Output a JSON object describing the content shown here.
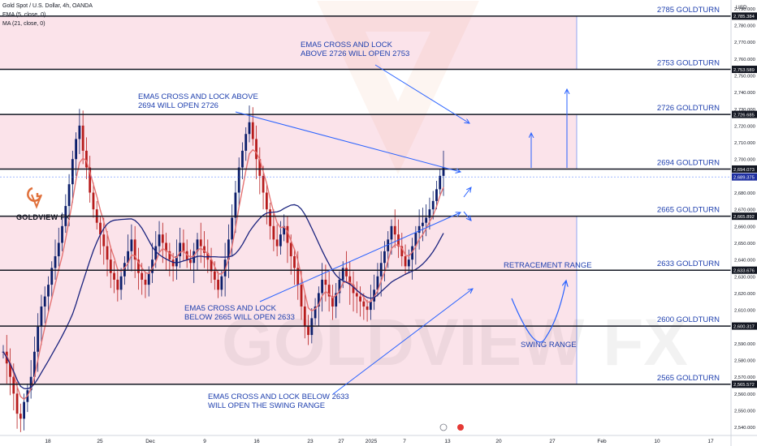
{
  "header": {
    "symbol_line": "Gold Spot / U.S. Dollar, 4h, OANDA",
    "ema_line": "EMA (5, close, 0)",
    "ma_line": "MA (21, close, 0)"
  },
  "watermark": {
    "text": "GOLDVIEW FX"
  },
  "logo": {
    "brand": "GOLDVIEW",
    "suffix": "FX"
  },
  "colors": {
    "zone_pink": "#fbe3ea",
    "level_line": "#131722",
    "annotation_blue": "#2962ff",
    "label_blue": "#1e3fae",
    "candle_up": "#0b1e6b",
    "candle_down": "#b71c1c",
    "ema_color": "#e57373",
    "ma_color": "#1a237e",
    "price_tag": "#1e2fa0"
  },
  "chart_data": {
    "type": "candlestick",
    "title": "Gold Spot / U.S. Dollar, 4h, OANDA",
    "indicators": [
      "EMA (5, close, 0)",
      "MA (21, close, 0)"
    ],
    "y_axis": {
      "unit": "USD",
      "range": [
        2535,
        2795
      ],
      "ticks": [
        2540,
        2550,
        2560,
        2570,
        2580,
        2590,
        2600,
        2610,
        2620,
        2630,
        2640,
        2650,
        2660,
        2670,
        2680,
        2690,
        2700,
        2710,
        2720,
        2730,
        2740,
        2750,
        2760,
        2770,
        2780,
        2790
      ],
      "tick_labels": [
        "2,540.000",
        "2,550.000",
        "2,560.000",
        "2,570.000",
        "2,580.000",
        "2,590.000",
        "2,600.000",
        "2,610.000",
        "2,620.000",
        "2,630.000",
        "2,640.000",
        "2,650.000",
        "2,660.000",
        "2,670.000",
        "2,680.000",
        "2,690.000",
        "2,700.000",
        "2,710.000",
        "2,720.000",
        "2,730.000",
        "2,740.000",
        "2,750.000",
        "2,760.000",
        "2,770.000",
        "2,780.000",
        "2,790.000"
      ]
    },
    "x_axis": {
      "labels": [
        "18",
        "25",
        "Dec",
        "9",
        "16",
        "23",
        "27",
        "2025",
        "7",
        "13",
        "20",
        "27",
        "Feb",
        "10",
        "17"
      ]
    },
    "levels": [
      {
        "value": 2785.384,
        "price_label": "2,785.384",
        "name": "2785 GOLDTURN"
      },
      {
        "value": 2753.589,
        "price_label": "2,753.589",
        "name": "2753 GOLDTURN"
      },
      {
        "value": 2726.685,
        "price_label": "2,726.685",
        "name": "2726 GOLDTURN"
      },
      {
        "value": 2694.073,
        "price_label": "2,694.073",
        "name": "2694 GOLDTURN"
      },
      {
        "value": 2665.892,
        "price_label": "2,665.892",
        "name": "2665 GOLDTURN"
      },
      {
        "value": 2633.676,
        "price_label": "2,633.676",
        "name": "2633 GOLDTURN"
      },
      {
        "value": 2600.317,
        "price_label": "2,600.317",
        "name": "2600 GOLDTURN"
      },
      {
        "value": 2565.572,
        "price_label": "2,565.572",
        "name": "2565 GOLDTURN"
      }
    ],
    "current_price": {
      "value": 2689.375,
      "label": "2,689.375"
    },
    "zones": [
      {
        "from": 2753.589,
        "to": 2785.384
      },
      {
        "from": 2694.073,
        "to": 2726.685
      },
      {
        "from": 2565.572,
        "to": 2665.892
      }
    ],
    "annotations": [
      {
        "id": "ema-2726",
        "lines": [
          "EMA5 CROSS AND LOCK",
          "ABOVE 2726 WILL OPEN 2753"
        ]
      },
      {
        "id": "ema-2694",
        "lines": [
          "EMA5 CROSS AND LOCK ABOVE",
          "2694 WILL OPEN 2726"
        ]
      },
      {
        "id": "ema-2665",
        "lines": [
          "EMA5 CROSS AND LOCK",
          "BELOW 2665 WILL OPEN 2633"
        ]
      },
      {
        "id": "ema-2633",
        "lines": [
          "EMA5 CROSS AND LOCK BELOW 2633",
          "WILL OPEN THE SWING RANGE"
        ]
      },
      {
        "id": "retracement",
        "lines": [
          "RETRACEMENT RANGE"
        ]
      },
      {
        "id": "swing",
        "lines": [
          "SWING RANGE"
        ]
      }
    ],
    "series": [
      {
        "name": "EMA (5, close, 0)",
        "role": "ema"
      },
      {
        "name": "MA (21, close, 0)",
        "role": "ma"
      }
    ],
    "ohlc_close": [
      2585,
      2578,
      2570,
      2560,
      2548,
      2545,
      2555,
      2562,
      2570,
      2585,
      2600,
      2612,
      2618,
      2625,
      2635,
      2642,
      2650,
      2660,
      2672,
      2685,
      2700,
      2712,
      2720,
      2705,
      2695,
      2680,
      2670,
      2662,
      2655,
      2648,
      2640,
      2632,
      2628,
      2622,
      2630,
      2638,
      2645,
      2652,
      2640,
      2632,
      2628,
      2625,
      2632,
      2640,
      2648,
      2655,
      2650,
      2645,
      2640,
      2636,
      2642,
      2650,
      2645,
      2640,
      2638,
      2645,
      2652,
      2648,
      2644,
      2640,
      2633,
      2628,
      2622,
      2630,
      2640,
      2652,
      2665,
      2680,
      2695,
      2705,
      2715,
      2722,
      2712,
      2700,
      2690,
      2680,
      2670,
      2660,
      2652,
      2648,
      2655,
      2660,
      2650,
      2642,
      2635,
      2625,
      2612,
      2600,
      2595,
      2605,
      2612,
      2620,
      2628,
      2625,
      2618,
      2612,
      2620,
      2628,
      2635,
      2630,
      2625,
      2620,
      2618,
      2615,
      2612,
      2610,
      2615,
      2622,
      2630,
      2638,
      2645,
      2652,
      2660,
      2655,
      2648,
      2642,
      2636,
      2640,
      2648,
      2656,
      2660,
      2662,
      2665,
      2670,
      2675,
      2682,
      2690,
      2695
    ]
  }
}
